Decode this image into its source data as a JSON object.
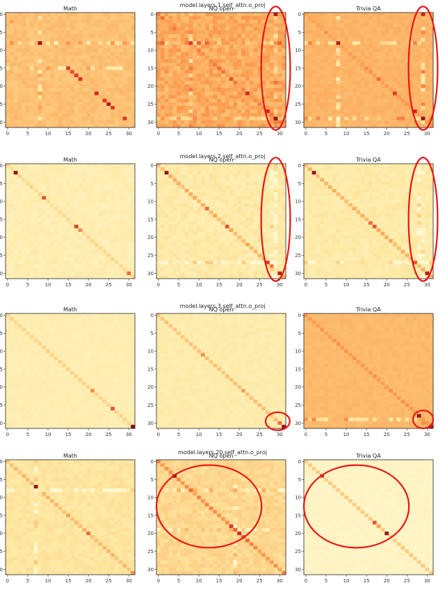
{
  "chart_data": {
    "type": "heatmap",
    "colormap": "YlOrRd",
    "colors": {
      "cmap_low": "#fff5cc",
      "cmap_mid": "#fca54f",
      "cmap_high": "#8b0a0a",
      "annotation": "#ee1111"
    },
    "matrix_size": 32,
    "x_ticks": [
      "0",
      "5",
      "10",
      "15",
      "20",
      "25",
      "30"
    ],
    "y_ticks": [
      "0",
      "5",
      "10",
      "15",
      "20",
      "25",
      "30"
    ],
    "rows": [
      {
        "title": "model.layers.1.self_attn.o_proj",
        "panels": [
          {
            "title": "Math",
            "base": 0.42,
            "noise": 0.04,
            "diag": 0.0,
            "hot": [
              [
                8,
                8,
                0.95
              ],
              [
                15,
                15,
                0.8
              ],
              [
                16,
                16,
                0.75
              ],
              [
                17,
                17,
                0.8
              ],
              [
                18,
                18,
                0.82
              ],
              [
                22,
                22,
                0.85
              ],
              [
                24,
                24,
                0.8
              ],
              [
                25,
                25,
                0.9
              ],
              [
                26,
                26,
                0.8
              ],
              [
                29,
                29,
                0.8
              ],
              [
                2,
                1,
                0.55
              ]
            ],
            "bright_rows": [
              8,
              15
            ],
            "bright_cols": [
              8
            ],
            "ellipse": null
          },
          {
            "title": "NQ open",
            "base": 0.5,
            "noise": 0.08,
            "diag": 0.1,
            "hot": [
              [
                8,
                8,
                0.8
              ],
              [
                15,
                15,
                0.7
              ],
              [
                18,
                18,
                0.75
              ],
              [
                22,
                22,
                0.85
              ],
              [
                27,
                27,
                0.85
              ],
              [
                29,
                29,
                0.95
              ],
              [
                0,
                29,
                0.9
              ],
              [
                8,
                29,
                0.6
              ]
            ],
            "bright_rows": [
              8,
              29
            ],
            "bright_cols": [
              8,
              29
            ],
            "ellipse": {
              "cx": 29.5,
              "cy": 15.5,
              "rx": 3.6,
              "ry": 17.2
            }
          },
          {
            "title": "Trivia QA",
            "base": 0.47,
            "noise": 0.03,
            "diag": 0.08,
            "hot": [
              [
                8,
                8,
                0.9
              ],
              [
                15,
                15,
                0.6
              ],
              [
                18,
                18,
                0.7
              ],
              [
                22,
                22,
                0.8
              ],
              [
                27,
                27,
                0.85
              ],
              [
                29,
                29,
                0.95
              ],
              [
                0,
                29,
                0.85
              ]
            ],
            "bright_rows": [
              8,
              29
            ],
            "bright_cols": [
              8,
              29
            ],
            "ellipse": {
              "cx": 29.5,
              "cy": 15.5,
              "rx": 3.6,
              "ry": 17.2
            }
          }
        ]
      },
      {
        "title": "model.layers.2.self_attn.o_proj",
        "panels": [
          {
            "title": "Math",
            "base": 0.14,
            "noise": 0.04,
            "diag": 0.15,
            "hot": [
              [
                2,
                2,
                0.95
              ],
              [
                9,
                9,
                0.75
              ],
              [
                17,
                17,
                0.78
              ],
              [
                18,
                18,
                0.6
              ],
              [
                30,
                30,
                0.7
              ]
            ],
            "bright_rows": [],
            "bright_cols": [],
            "ellipse": null
          },
          {
            "title": "NQ open",
            "base": 0.18,
            "noise": 0.06,
            "diag": 0.3,
            "hot": [
              [
                2,
                2,
                0.95
              ],
              [
                12,
                12,
                0.7
              ],
              [
                17,
                17,
                0.75
              ],
              [
                27,
                27,
                0.8
              ],
              [
                30,
                30,
                0.9
              ]
            ],
            "bright_rows": [
              27
            ],
            "bright_cols": [
              28,
              29
            ],
            "ellipse": {
              "cx": 29.5,
              "cy": 15.5,
              "rx": 3.6,
              "ry": 17.2
            }
          },
          {
            "title": "Trivia QA",
            "base": 0.18,
            "noise": 0.05,
            "diag": 0.3,
            "hot": [
              [
                2,
                2,
                0.95
              ],
              [
                16,
                16,
                0.7
              ],
              [
                17,
                17,
                0.75
              ],
              [
                27,
                27,
                0.75
              ],
              [
                30,
                30,
                0.9
              ]
            ],
            "bright_rows": [
              27
            ],
            "bright_cols": [
              28,
              29
            ],
            "ellipse": {
              "cx": 29.5,
              "cy": 15.5,
              "rx": 3.6,
              "ry": 17.2
            }
          }
        ]
      },
      {
        "title": "model.layers.3.self_attn.o_proj",
        "panels": [
          {
            "title": "Math",
            "base": 0.14,
            "noise": 0.02,
            "diag": 0.18,
            "hot": [
              [
                21,
                21,
                0.6
              ],
              [
                26,
                26,
                0.75
              ],
              [
                31,
                31,
                0.98
              ]
            ],
            "bright_rows": [],
            "bright_cols": [],
            "ellipse": null
          },
          {
            "title": "NQ open",
            "base": 0.16,
            "noise": 0.03,
            "diag": 0.25,
            "hot": [
              [
                11,
                11,
                0.6
              ],
              [
                21,
                21,
                0.55
              ],
              [
                31,
                31,
                0.95
              ],
              [
                30,
                30,
                0.7
              ]
            ],
            "bright_rows": [],
            "bright_cols": [],
            "ellipse": {
              "cx": 30.0,
              "cy": 30.0,
              "rx": 3.0,
              "ry": 2.5
            }
          },
          {
            "title": "Trivia QA",
            "base": 0.45,
            "noise": 0.02,
            "diag": 0.12,
            "hot": [
              [
                28,
                28,
                0.95
              ],
              [
                31,
                31,
                0.9
              ],
              [
                30,
                29,
                0.6
              ]
            ],
            "bright_rows": [
              29
            ],
            "bright_cols": [],
            "ellipse": {
              "cx": 29.5,
              "cy": 29.5,
              "rx": 2.5,
              "ry": 2.5
            }
          }
        ]
      },
      {
        "title": "model.layers.20.self_attn.o_proj",
        "panels": [
          {
            "title": "Math",
            "base": 0.22,
            "noise": 0.04,
            "diag": 0.22,
            "hot": [
              [
                7,
                7,
                0.95
              ],
              [
                15,
                15,
                0.55
              ],
              [
                20,
                20,
                0.7
              ],
              [
                31,
                31,
                0.6
              ]
            ],
            "bright_rows": [
              8
            ],
            "bright_cols": [
              7
            ],
            "ellipse": null
          },
          {
            "title": "NQ open",
            "base": 0.3,
            "noise": 0.06,
            "diag": 0.28,
            "hot": [
              [
                4,
                4,
                0.95
              ],
              [
                8,
                8,
                0.7
              ],
              [
                18,
                18,
                0.8
              ],
              [
                20,
                20,
                0.85
              ],
              [
                21,
                21,
                0.75
              ],
              [
                22,
                22,
                0.7
              ],
              [
                17,
                17,
                0.6
              ]
            ],
            "bright_rows": [
              8,
              19
            ],
            "bright_cols": [
              19
            ],
            "ellipse": {
              "cx": 13.0,
              "cy": 13.0,
              "rx": 13.0,
              "ry": 11.5
            }
          },
          {
            "title": "Trivia QA",
            "base": 0.06,
            "noise": 0.02,
            "diag": 0.3,
            "hot": [
              [
                4,
                4,
                0.8
              ],
              [
                17,
                17,
                0.75
              ],
              [
                20,
                20,
                0.95
              ],
              [
                18,
                18,
                0.55
              ]
            ],
            "bright_rows": [],
            "bright_cols": [],
            "ellipse": {
              "cx": 13.0,
              "cy": 13.0,
              "rx": 13.0,
              "ry": 11.5
            }
          }
        ]
      }
    ]
  }
}
